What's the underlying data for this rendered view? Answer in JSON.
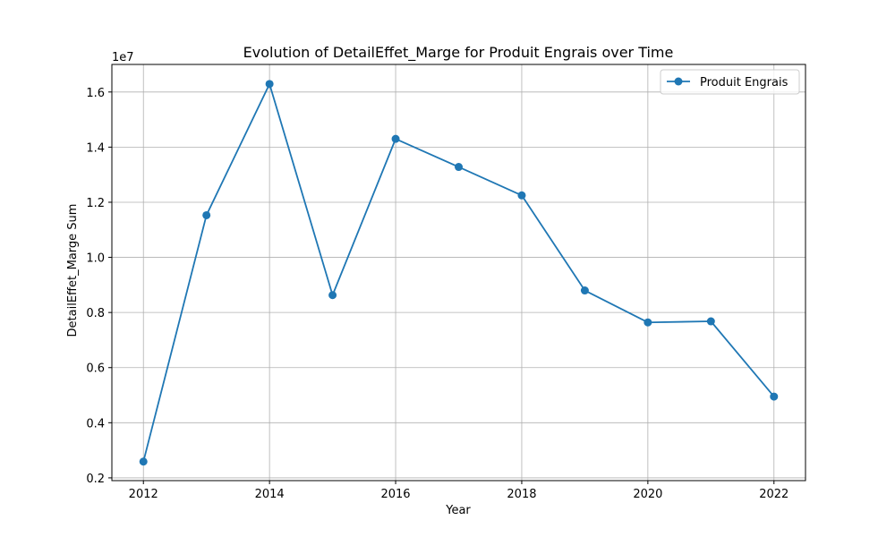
{
  "chart_data": {
    "type": "line",
    "title": "Evolution of DetailEffet_Marge for Produit Engrais over Time",
    "xlabel": "Year",
    "ylabel": "DetailEffet_Marge Sum",
    "y_offset_label": "1e7",
    "y_scale_factor": 10000000,
    "xlim": [
      2011.5,
      2022.5
    ],
    "ylim": [
      0.19,
      1.7
    ],
    "xticks": [
      2012,
      2014,
      2016,
      2018,
      2020,
      2022
    ],
    "yticks": [
      0.2,
      0.4,
      0.6,
      0.8,
      1.0,
      1.2,
      1.4,
      1.6
    ],
    "ytick_labels": [
      "0.2",
      "0.4",
      "0.6",
      "0.8",
      "1.0",
      "1.2",
      "1.4",
      "1.6"
    ],
    "grid": true,
    "legend_position": "top-right",
    "series": [
      {
        "name": "Produit Engrais",
        "color": "#1f77b4",
        "marker": "circle",
        "x": [
          2012,
          2013,
          2014,
          2015,
          2016,
          2017,
          2018,
          2019,
          2020,
          2021,
          2022
        ],
        "y": [
          2590000,
          11530000,
          16290000,
          8630000,
          14300000,
          13280000,
          12250000,
          8800000,
          7640000,
          7680000,
          4950000
        ]
      }
    ]
  }
}
